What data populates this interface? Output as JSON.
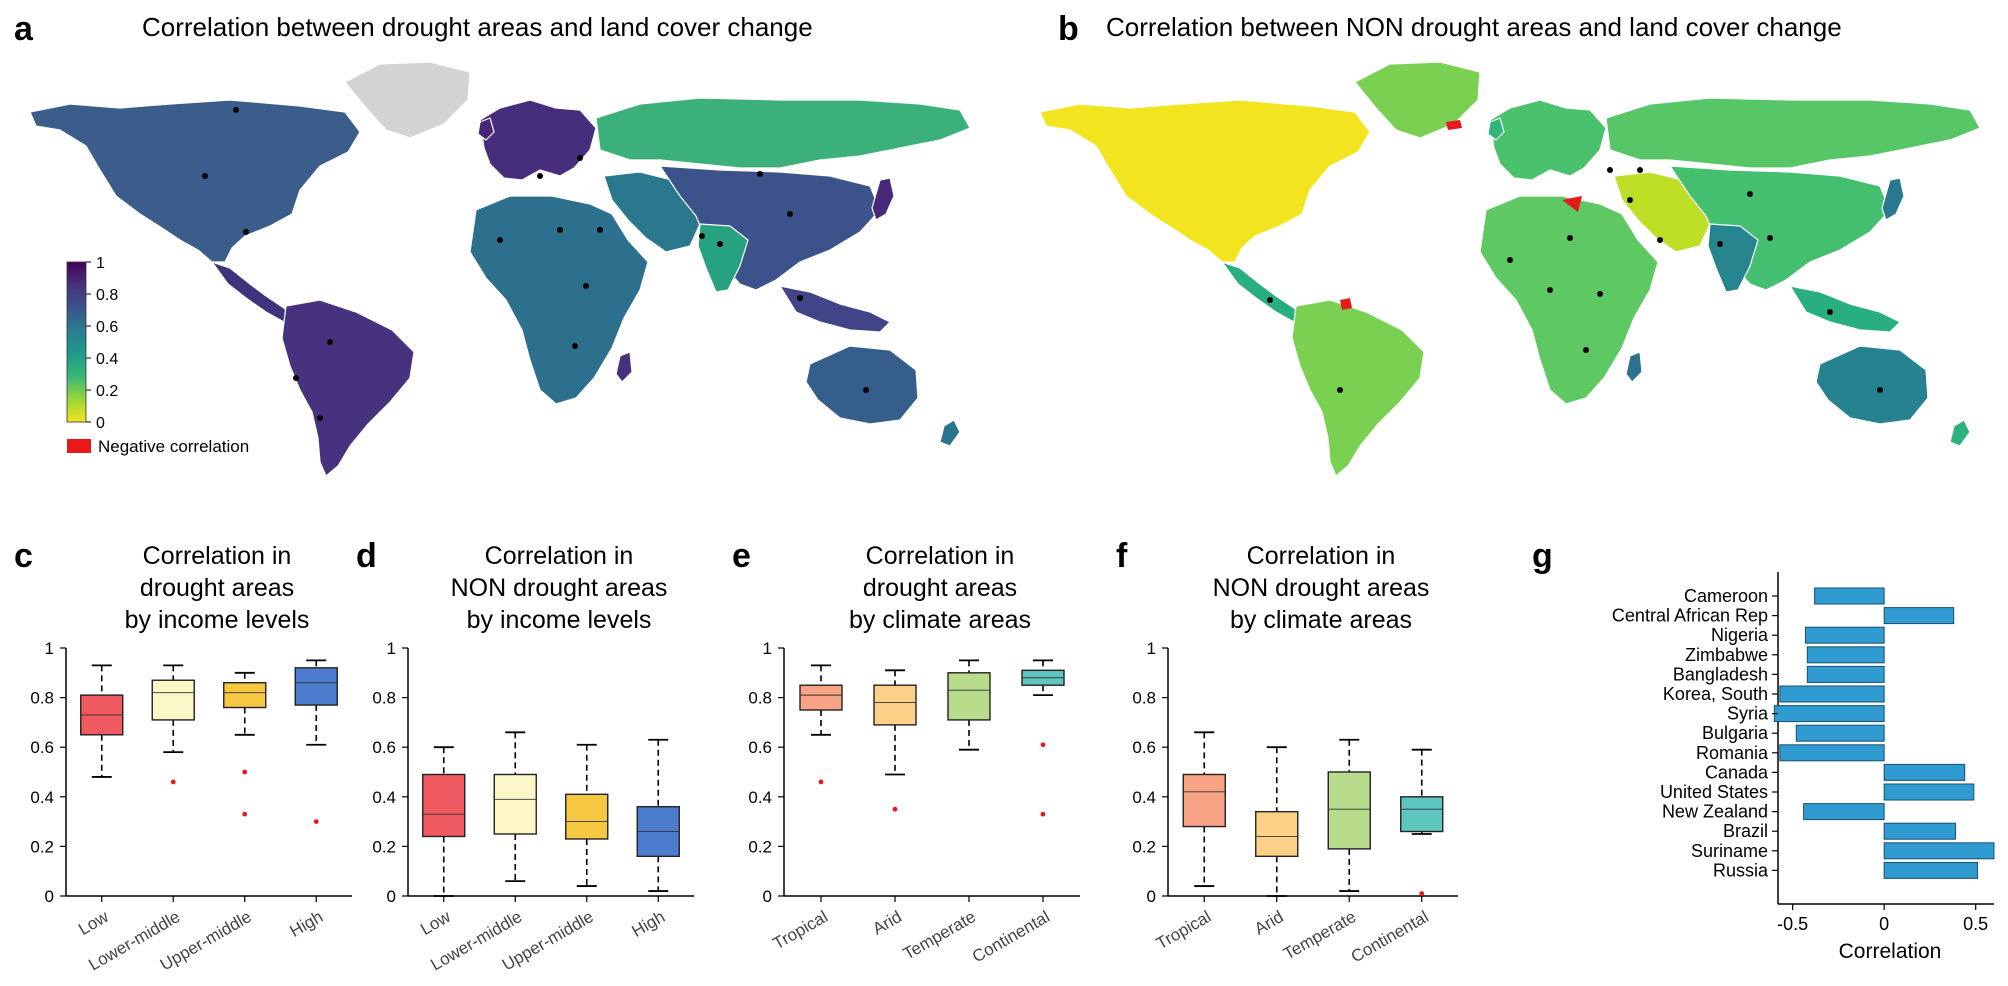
{
  "panels": {
    "a": {
      "letter": "a",
      "title": "Correlation between drought areas and land cover change"
    },
    "b": {
      "letter": "b",
      "title": "Correlation between NON drought areas and land cover change"
    }
  },
  "colorbar": {
    "ticks": [
      "0",
      "0.2",
      "0.4",
      "0.6",
      "0.8",
      "1"
    ],
    "negative_label": "Negative correlation",
    "negative_color": "#e8191b",
    "stops": [
      "#f2e51f",
      "#99d53a",
      "#35b779",
      "#1f9a8a",
      "#2b7d8e",
      "#3b528b",
      "#46327e",
      "#440154"
    ]
  },
  "chart_data": [
    {
      "type": "box",
      "letter": "c",
      "title": [
        "Correlation in",
        "drought areas",
        "by income levels"
      ],
      "categories": [
        "Low",
        "Lower-middle",
        "Upper-middle",
        "High"
      ],
      "colors": [
        "#ee5a5f",
        "#fdf6c6",
        "#f6c842",
        "#4d7ccf"
      ],
      "ylim": [
        0,
        1
      ],
      "yticks": [
        "0",
        "0.2",
        "0.4",
        "0.6",
        "0.8",
        "1"
      ],
      "boxes": [
        {
          "min": 0.48,
          "q1": 0.65,
          "median": 0.73,
          "q3": 0.81,
          "max": 0.93,
          "outliers": []
        },
        {
          "min": 0.58,
          "q1": 0.71,
          "median": 0.82,
          "q3": 0.87,
          "max": 0.93,
          "outliers": [
            0.46
          ]
        },
        {
          "min": 0.65,
          "q1": 0.76,
          "median": 0.82,
          "q3": 0.86,
          "max": 0.9,
          "outliers": [
            0.5,
            0.33
          ]
        },
        {
          "min": 0.61,
          "q1": 0.77,
          "median": 0.86,
          "q3": 0.92,
          "max": 0.95,
          "outliers": [
            0.3
          ]
        }
      ]
    },
    {
      "type": "box",
      "letter": "d",
      "title": [
        "Correlation in",
        "NON drought areas",
        "by income levels"
      ],
      "categories": [
        "Low",
        "Lower-middle",
        "Upper-middle",
        "High"
      ],
      "colors": [
        "#ee5a5f",
        "#fdf6c6",
        "#f6c842",
        "#4d7ccf"
      ],
      "ylim": [
        0,
        1
      ],
      "yticks": [
        "0",
        "0.2",
        "0.4",
        "0.6",
        "0.8",
        "1"
      ],
      "boxes": [
        {
          "min": 0.0,
          "q1": 0.24,
          "median": 0.33,
          "q3": 0.49,
          "max": 0.6,
          "outliers": []
        },
        {
          "min": 0.06,
          "q1": 0.25,
          "median": 0.39,
          "q3": 0.49,
          "max": 0.66,
          "outliers": []
        },
        {
          "min": 0.04,
          "q1": 0.23,
          "median": 0.3,
          "q3": 0.41,
          "max": 0.61,
          "outliers": []
        },
        {
          "min": 0.02,
          "q1": 0.16,
          "median": 0.26,
          "q3": 0.36,
          "max": 0.63,
          "outliers": []
        }
      ]
    },
    {
      "type": "box",
      "letter": "e",
      "title": [
        "Correlation in",
        "drought areas",
        "by climate areas"
      ],
      "categories": [
        "Tropical",
        "Arid",
        "Temperate",
        "Continental"
      ],
      "colors": [
        "#f9a386",
        "#fdd088",
        "#b9dc8c",
        "#5ec5bf"
      ],
      "ylim": [
        0,
        1
      ],
      "yticks": [
        "0",
        "0.2",
        "0.4",
        "0.6",
        "0.8",
        "1"
      ],
      "boxes": [
        {
          "min": 0.65,
          "q1": 0.75,
          "median": 0.81,
          "q3": 0.85,
          "max": 0.93,
          "outliers": [
            0.46
          ]
        },
        {
          "min": 0.49,
          "q1": 0.69,
          "median": 0.78,
          "q3": 0.85,
          "max": 0.91,
          "outliers": [
            0.35
          ]
        },
        {
          "min": 0.59,
          "q1": 0.71,
          "median": 0.83,
          "q3": 0.9,
          "max": 0.95,
          "outliers": []
        },
        {
          "min": 0.81,
          "q1": 0.85,
          "median": 0.88,
          "q3": 0.91,
          "max": 0.95,
          "outliers": [
            0.61,
            0.33
          ]
        }
      ]
    },
    {
      "type": "box",
      "letter": "f",
      "title": [
        "Correlation in",
        "NON drought areas",
        "by climate areas"
      ],
      "categories": [
        "Tropical",
        "Arid",
        "Temperate",
        "Continental"
      ],
      "colors": [
        "#f9a386",
        "#fdd088",
        "#b9dc8c",
        "#5ec5bf"
      ],
      "ylim": [
        0,
        1
      ],
      "yticks": [
        "0",
        "0.2",
        "0.4",
        "0.6",
        "0.8",
        "1"
      ],
      "boxes": [
        {
          "min": 0.04,
          "q1": 0.28,
          "median": 0.42,
          "q3": 0.49,
          "max": 0.66,
          "outliers": []
        },
        {
          "min": 0.0,
          "q1": 0.16,
          "median": 0.24,
          "q3": 0.34,
          "max": 0.6,
          "outliers": []
        },
        {
          "min": 0.02,
          "q1": 0.19,
          "median": 0.35,
          "q3": 0.5,
          "max": 0.63,
          "outliers": []
        },
        {
          "min": 0.25,
          "q1": 0.26,
          "median": 0.35,
          "q3": 0.4,
          "max": 0.59,
          "outliers": [
            0.01
          ]
        }
      ]
    },
    {
      "type": "bar",
      "letter": "g",
      "orientation": "horizontal",
      "categories": [
        "Cameroon",
        "Central African Rep",
        "Nigeria",
        "Zimbabwe",
        "Bangladesh",
        "Korea, South",
        "Syria",
        "Bulgaria",
        "Romania",
        "Canada",
        "United States",
        "New Zealand",
        "Brazil",
        "Suriname",
        "Russia"
      ],
      "values": [
        -0.38,
        0.38,
        -0.43,
        -0.42,
        -0.42,
        -0.57,
        -0.6,
        -0.48,
        -0.57,
        0.44,
        0.49,
        -0.44,
        0.39,
        0.6,
        0.51
      ],
      "xlabel": "Correlation",
      "xlim": [
        -0.58,
        0.6
      ],
      "xticks": [
        "-0.5",
        "0",
        "0.5"
      ],
      "color": "#2f9bd1"
    }
  ]
}
